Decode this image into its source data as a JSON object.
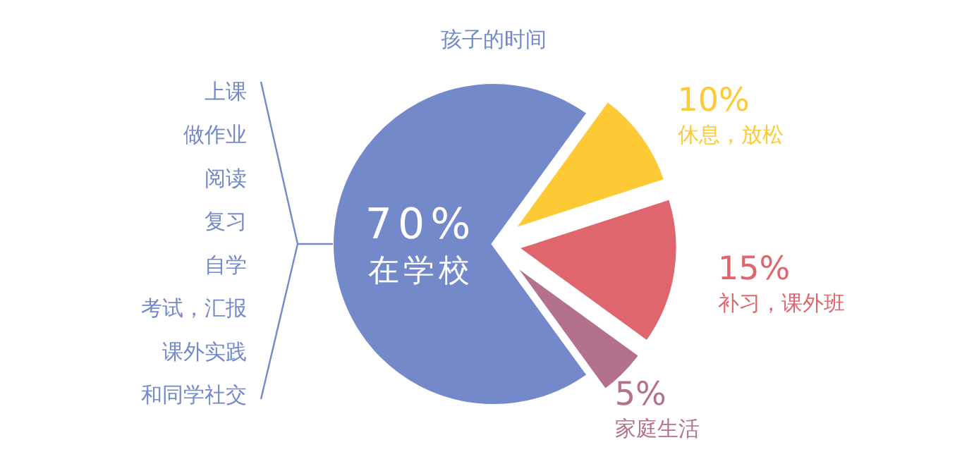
{
  "chart_data": {
    "type": "pie",
    "title": "孩子的时间",
    "categories": [
      "在学校",
      "休息，放松",
      "补习，课外班",
      "家庭生活"
    ],
    "values": [
      70,
      10,
      15,
      5
    ],
    "value_labels": [
      "70%",
      "10%",
      "15%",
      "5%"
    ],
    "colors": [
      "#7389c9",
      "#fdc935",
      "#e0666e",
      "#b3718e"
    ],
    "annotations": [
      "上课",
      "做作业",
      "阅读",
      "复习",
      "自学",
      "考试，汇报",
      "课外实践",
      "和同学社交"
    ]
  }
}
